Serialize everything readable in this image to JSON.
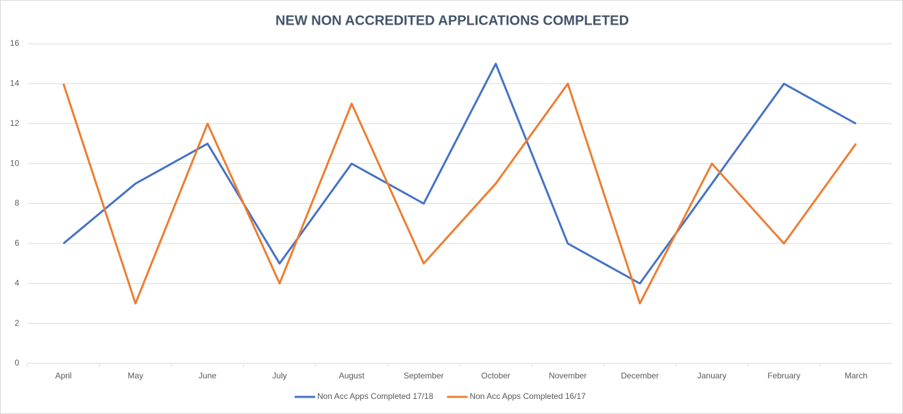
{
  "chart_data": {
    "type": "line",
    "title": "NEW NON ACCREDITED APPLICATIONS COMPLETED",
    "categories": [
      "April",
      "May",
      "June",
      "July",
      "August",
      "September",
      "October",
      "November",
      "December",
      "January",
      "February",
      "March"
    ],
    "series": [
      {
        "name": "Non Acc Apps Completed 17/18",
        "color": "#4472c4",
        "values": [
          6,
          9,
          11,
          5,
          10,
          8,
          15,
          6,
          4,
          9,
          14,
          12
        ]
      },
      {
        "name": "Non Acc Apps Completed 16/17",
        "color": "#ed7d31",
        "values": [
          14,
          3,
          12,
          4,
          13,
          5,
          9,
          14,
          3,
          10,
          6,
          11
        ]
      }
    ],
    "ylim": [
      0,
      16
    ],
    "yticks": [
      0,
      2,
      4,
      6,
      8,
      10,
      12,
      14,
      16
    ],
    "grid": true,
    "legend": "bottom"
  }
}
